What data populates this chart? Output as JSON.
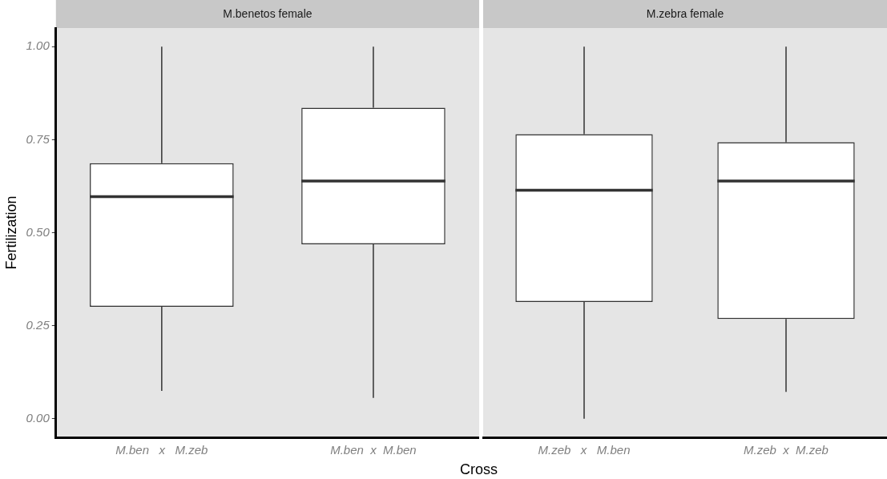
{
  "chart_data": [
    {
      "type": "box",
      "title": "M.benetos female",
      "ylabel": "Fertilization",
      "xlabel": "Cross",
      "categories": [
        "M.ben   x   M.zeb",
        "M.ben  x  M.ben"
      ],
      "boxes": [
        {
          "low": 0.075,
          "q1": 0.301,
          "median": 0.597,
          "q3": 0.687,
          "high": 1.0
        },
        {
          "low": 0.056,
          "q1": 0.469,
          "median": 0.639,
          "q3": 0.836,
          "high": 1.0
        }
      ],
      "ylim": [
        -0.05,
        1.05
      ],
      "yticks": [
        {
          "value": 0,
          "label": "0.00"
        },
        {
          "value": 0.25,
          "label": "0.25"
        },
        {
          "value": 0.5,
          "label": "0.50"
        },
        {
          "value": 0.75,
          "label": "0.75"
        },
        {
          "value": 1,
          "label": "1.00"
        }
      ]
    },
    {
      "type": "box",
      "title": "M.zebra female",
      "categories": [
        "M.zeb   x   M.ben",
        "M.zeb  x  M.zeb"
      ],
      "boxes": [
        {
          "low": 0.0,
          "q1": 0.314,
          "median": 0.614,
          "q3": 0.765,
          "high": 1.0
        },
        {
          "low": 0.072,
          "q1": 0.268,
          "median": 0.639,
          "q3": 0.743,
          "high": 1.0
        }
      ],
      "ylim": [
        -0.05,
        1.05
      ],
      "tick_labels": "x"
    }
  ]
}
